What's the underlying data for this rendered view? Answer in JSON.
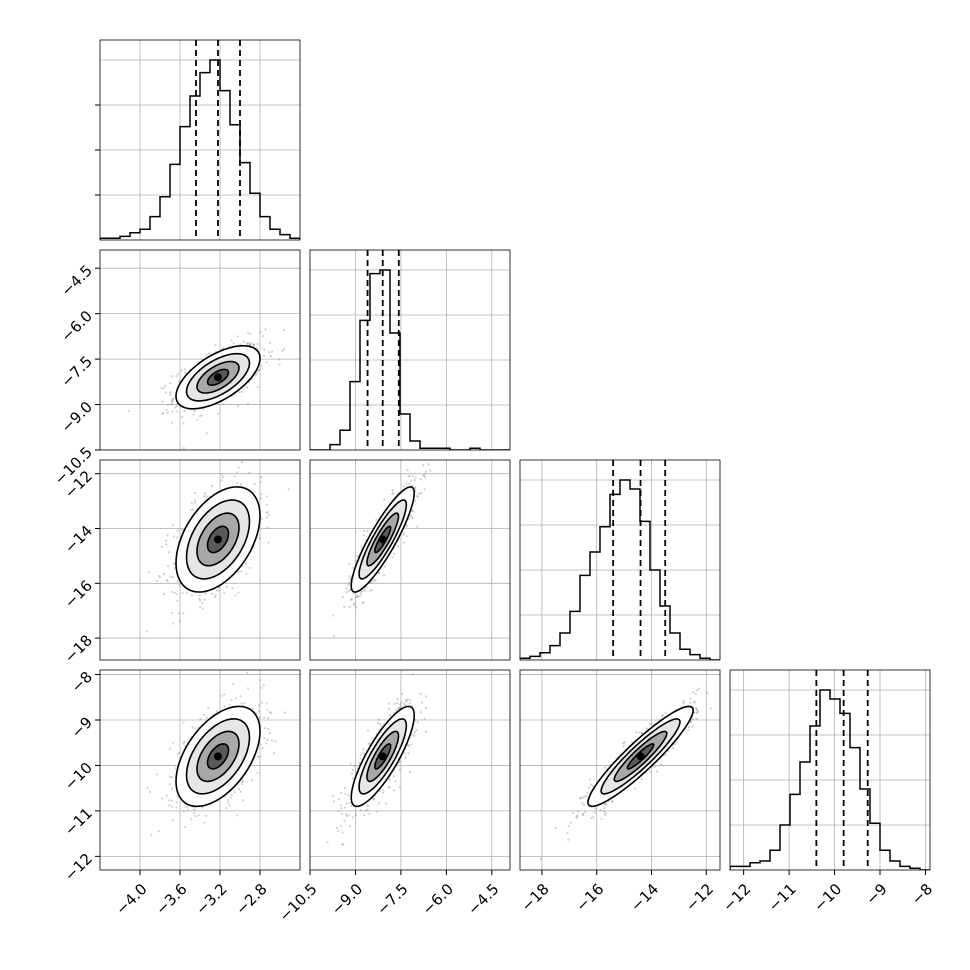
{
  "chart_data": {
    "type": "corner",
    "grid": true,
    "parameters": [
      {
        "range": [
          -4.4,
          -2.4
        ],
        "ticks": [
          "−4.0",
          "−3.6",
          "−3.2",
          "−2.8"
        ],
        "quantiles": [
          -3.44,
          -3.22,
          -3.0
        ],
        "histogram": [
          0.01,
          0.01,
          0.02,
          0.04,
          0.06,
          0.13,
          0.24,
          0.42,
          0.63,
          0.8,
          0.93,
          1.0,
          0.83,
          0.64,
          0.43,
          0.26,
          0.13,
          0.06,
          0.03,
          0.01
        ]
      },
      {
        "range": [
          -10.5,
          -3.9
        ],
        "ticks": [
          "−10.5",
          "−9.0",
          "−7.5",
          "−6.0",
          "−4.5"
        ],
        "quantiles": [
          -8.6,
          -8.1,
          -7.57
        ],
        "histogram": [
          0.0,
          0.0,
          0.03,
          0.11,
          0.38,
          0.72,
          0.98,
          1.0,
          0.65,
          0.2,
          0.05,
          0.01,
          0.01,
          0.01,
          0.0,
          0.0,
          0.01,
          0.0,
          0.0,
          0.0
        ]
      },
      {
        "range": [
          -18.8,
          -11.5
        ],
        "ticks": [
          "−18",
          "−16",
          "−14",
          "−12"
        ],
        "quantiles": [
          -15.4,
          -14.4,
          -13.5
        ],
        "histogram": [
          0.01,
          0.02,
          0.04,
          0.08,
          0.15,
          0.27,
          0.47,
          0.6,
          0.74,
          0.92,
          1.0,
          0.95,
          0.77,
          0.5,
          0.3,
          0.15,
          0.06,
          0.03,
          0.01,
          0.0
        ]
      },
      {
        "range": [
          -12.3,
          -7.9
        ],
        "ticks": [
          "−12",
          "−11",
          "−10",
          "−9",
          "−8"
        ],
        "quantiles": [
          -10.4,
          -9.8,
          -9.27
        ],
        "histogram": [
          0.02,
          0.02,
          0.04,
          0.05,
          0.11,
          0.25,
          0.42,
          0.6,
          0.8,
          1.0,
          0.95,
          0.87,
          0.68,
          0.45,
          0.26,
          0.11,
          0.05,
          0.02,
          0.01,
          0.0
        ]
      }
    ],
    "ytick_labels": {
      "1": [
        "−4.5",
        "−6.0",
        "−7.5",
        "−9.0",
        "−10.5"
      ],
      "2": [
        "−12",
        "−14",
        "−16",
        "−18"
      ],
      "3": [
        "−8",
        "−9",
        "−10",
        "−11",
        "−12"
      ]
    },
    "ytick_values": {
      "1": [
        -4.5,
        -6.0,
        -7.5,
        -9.0,
        -10.5
      ],
      "2": [
        -12,
        -14,
        -16,
        -18
      ],
      "3": [
        -8,
        -9,
        -10,
        -11,
        -12
      ]
    },
    "xtick_values": [
      [
        -4.0,
        -3.6,
        -3.2,
        -2.8
      ],
      [
        -10.5,
        -9.0,
        -7.5,
        -6.0,
        -4.5
      ],
      [
        -18,
        -16,
        -14,
        -12
      ],
      [
        -12,
        -11,
        -10,
        -9,
        -8
      ]
    ],
    "means": [
      -3.22,
      -8.1,
      -14.4,
      -9.8
    ],
    "sigmas": [
      0.21,
      0.52,
      0.96,
      0.55
    ],
    "correlations": [
      [
        1.0,
        0.6,
        0.45,
        0.5
      ],
      [
        0.6,
        1.0,
        0.88,
        0.82
      ],
      [
        0.45,
        0.88,
        1.0,
        0.92
      ],
      [
        0.5,
        0.82,
        0.92,
        1.0
      ]
    ],
    "contour_levels_sigma": [
      0.5,
      1.0,
      1.5,
      2.0
    ]
  }
}
